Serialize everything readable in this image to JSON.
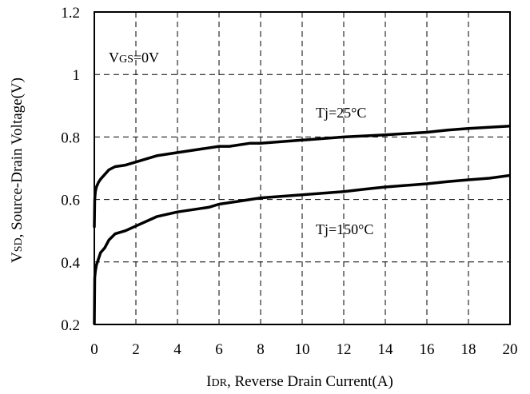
{
  "chart_data": {
    "type": "line",
    "title": "",
    "xlabel": {
      "main": "I",
      "sub": "DR",
      "rest": ", Reverse Drain Current(A)"
    },
    "ylabel": {
      "main": "V",
      "sub": "SD",
      "rest": ", Source-Drain Voltage(V)"
    },
    "xlim": [
      0,
      20
    ],
    "ylim": [
      0.2,
      1.2
    ],
    "xticks": [
      0,
      2,
      4,
      6,
      8,
      10,
      12,
      14,
      16,
      18,
      20
    ],
    "yticks": [
      0.2,
      0.4,
      0.6,
      0.8,
      1,
      1.2
    ],
    "xtick_labels": [
      "0",
      "2",
      "4",
      "6",
      "8",
      "10",
      "12",
      "14",
      "16",
      "18",
      "20"
    ],
    "ytick_labels": [
      "0.2",
      "0.4",
      "0.6",
      "0.8",
      "1",
      "1.2"
    ],
    "grid": true,
    "annotations": {
      "condition": {
        "main": "V",
        "sub": "GS",
        "rest": "=0V"
      },
      "series_25": "Tj=25°C",
      "series_150": "Tj=150°C"
    },
    "series": [
      {
        "name": "Tj=25°C",
        "x": [
          0.0,
          0.02,
          0.05,
          0.1,
          0.2,
          0.3,
          0.5,
          0.7,
          1.0,
          1.5,
          2.0,
          3.0,
          4.0,
          5.0,
          6.0,
          6.5,
          7.5,
          8.0,
          9.0,
          10.0,
          12.0,
          14.0,
          16.0,
          17.0,
          18.0,
          19.0,
          20.0
        ],
        "y": [
          0.51,
          0.6,
          0.625,
          0.64,
          0.655,
          0.665,
          0.68,
          0.695,
          0.705,
          0.71,
          0.72,
          0.74,
          0.75,
          0.76,
          0.77,
          0.77,
          0.78,
          0.78,
          0.785,
          0.79,
          0.8,
          0.807,
          0.815,
          0.822,
          0.827,
          0.831,
          0.835
        ]
      },
      {
        "name": "Tj=150°C",
        "x": [
          0.0,
          0.02,
          0.05,
          0.1,
          0.2,
          0.3,
          0.5,
          0.7,
          1.0,
          1.5,
          2.0,
          3.0,
          4.0,
          5.0,
          5.5,
          6.0,
          7.0,
          8.0,
          10.0,
          12.0,
          13.0,
          14.0,
          16.0,
          17.0,
          18.0,
          19.0,
          20.0
        ],
        "y": [
          0.2,
          0.35,
          0.37,
          0.39,
          0.41,
          0.43,
          0.445,
          0.47,
          0.49,
          0.5,
          0.515,
          0.545,
          0.56,
          0.57,
          0.575,
          0.585,
          0.595,
          0.605,
          0.615,
          0.625,
          0.633,
          0.64,
          0.65,
          0.657,
          0.663,
          0.668,
          0.677
        ]
      }
    ]
  }
}
